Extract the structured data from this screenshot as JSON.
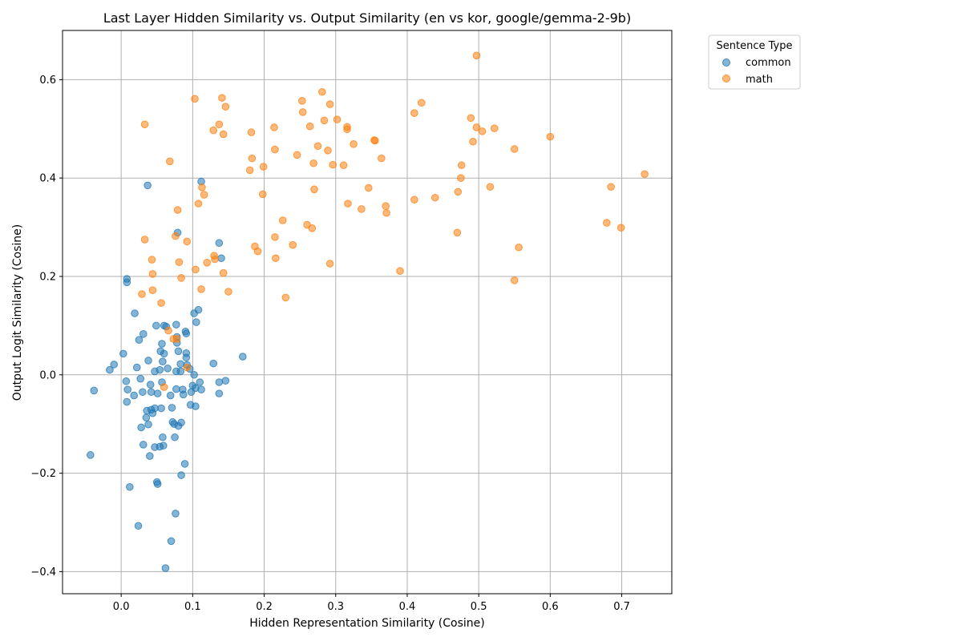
{
  "chart_data": {
    "type": "scatter",
    "title": "Last Layer Hidden Similarity vs. Output Similarity (en vs kor, google/gemma-2-9b)",
    "xlabel": "Hidden Representation Similarity (Cosine)",
    "ylabel": "Output Logit Similarity (Cosine)",
    "xlim": [
      -0.082,
      0.77
    ],
    "ylim": [
      -0.445,
      0.7
    ],
    "xticks": [
      0.0,
      0.1,
      0.2,
      0.3,
      0.4,
      0.5,
      0.6,
      0.7
    ],
    "xtick_labels": [
      "0.0",
      "0.1",
      "0.2",
      "0.3",
      "0.4",
      "0.5",
      "0.6",
      "0.7"
    ],
    "yticks": [
      -0.4,
      -0.2,
      0.0,
      0.2,
      0.4,
      0.6
    ],
    "ytick_labels": [
      "−0.4",
      "−0.2",
      "0.0",
      "0.2",
      "0.4",
      "0.6"
    ],
    "grid": true,
    "legend": {
      "title": "Sentence Type",
      "placement": "outside-top-right"
    },
    "series": [
      {
        "name": "common",
        "color": "#1f77b4",
        "points": [
          [
            -0.043,
            -0.163
          ],
          [
            -0.038,
            -0.032
          ],
          [
            -0.016,
            0.01
          ],
          [
            -0.01,
            0.021
          ],
          [
            0.003,
            0.043
          ],
          [
            0.007,
            -0.013
          ],
          [
            0.008,
            0.195
          ],
          [
            0.008,
            0.188
          ],
          [
            0.008,
            -0.055
          ],
          [
            0.009,
            -0.03
          ],
          [
            0.012,
            -0.228
          ],
          [
            0.018,
            -0.042
          ],
          [
            0.019,
            0.125
          ],
          [
            0.022,
            0.015
          ],
          [
            0.024,
            -0.307
          ],
          [
            0.025,
            0.071
          ],
          [
            0.027,
            -0.008
          ],
          [
            0.028,
            -0.107
          ],
          [
            0.03,
            -0.035
          ],
          [
            0.031,
            0.083
          ],
          [
            0.031,
            -0.142
          ],
          [
            0.035,
            -0.087
          ],
          [
            0.036,
            -0.073
          ],
          [
            0.037,
            0.385
          ],
          [
            0.038,
            0.029
          ],
          [
            0.038,
            -0.101
          ],
          [
            0.04,
            -0.165
          ],
          [
            0.041,
            -0.02
          ],
          [
            0.042,
            -0.035
          ],
          [
            0.042,
            -0.071
          ],
          [
            0.044,
            -0.078
          ],
          [
            0.047,
            -0.068
          ],
          [
            0.047,
            0.007
          ],
          [
            0.047,
            -0.147
          ],
          [
            0.049,
            0.1
          ],
          [
            0.05,
            -0.218
          ],
          [
            0.051,
            -0.222
          ],
          [
            0.051,
            -0.038
          ],
          [
            0.054,
            0.01
          ],
          [
            0.054,
            -0.146
          ],
          [
            0.055,
            0.048
          ],
          [
            0.056,
            -0.068
          ],
          [
            0.057,
            -0.015
          ],
          [
            0.057,
            0.063
          ],
          [
            0.058,
            0.027
          ],
          [
            0.058,
            -0.127
          ],
          [
            0.059,
            -0.144
          ],
          [
            0.06,
            0.1
          ],
          [
            0.06,
            0.043
          ],
          [
            0.062,
            -0.393
          ],
          [
            0.063,
            0.098
          ],
          [
            0.065,
            0.013
          ],
          [
            0.069,
            -0.042
          ],
          [
            0.07,
            -0.338
          ],
          [
            0.071,
            -0.067
          ],
          [
            0.072,
            -0.096
          ],
          [
            0.074,
            -0.1
          ],
          [
            0.075,
            -0.127
          ],
          [
            0.076,
            -0.282
          ],
          [
            0.077,
            0.007
          ],
          [
            0.077,
            0.102
          ],
          [
            0.077,
            -0.029
          ],
          [
            0.078,
            0.077
          ],
          [
            0.078,
            0.065
          ],
          [
            0.079,
            0.289
          ],
          [
            0.08,
            0.048
          ],
          [
            0.08,
            -0.104
          ],
          [
            0.083,
            0.007
          ],
          [
            0.083,
            0.022
          ],
          [
            0.084,
            -0.097
          ],
          [
            0.084,
            -0.204
          ],
          [
            0.086,
            -0.03
          ],
          [
            0.087,
            -0.04
          ],
          [
            0.089,
            -0.181
          ],
          [
            0.09,
            0.088
          ],
          [
            0.091,
            0.044
          ],
          [
            0.091,
            0.084
          ],
          [
            0.091,
            0.035
          ],
          [
            0.092,
            0.02
          ],
          [
            0.096,
            0.012
          ],
          [
            0.097,
            -0.061
          ],
          [
            0.098,
            -0.035
          ],
          [
            0.1,
            -0.022
          ],
          [
            0.102,
            0.0
          ],
          [
            0.102,
            0.125
          ],
          [
            0.104,
            -0.027
          ],
          [
            0.104,
            -0.064
          ],
          [
            0.105,
            0.107
          ],
          [
            0.108,
            0.132
          ],
          [
            0.11,
            -0.015
          ],
          [
            0.112,
            0.393
          ],
          [
            0.112,
            -0.03
          ],
          [
            0.129,
            0.023
          ],
          [
            0.137,
            0.268
          ],
          [
            0.137,
            -0.015
          ],
          [
            0.137,
            -0.038
          ],
          [
            0.14,
            0.237
          ],
          [
            0.146,
            -0.012
          ],
          [
            0.17,
            0.037
          ]
        ]
      },
      {
        "name": "math",
        "color": "#ff7f0e",
        "points": [
          [
            0.029,
            0.164
          ],
          [
            0.033,
            0.275
          ],
          [
            0.033,
            0.509
          ],
          [
            0.043,
            0.234
          ],
          [
            0.044,
            0.172
          ],
          [
            0.044,
            0.205
          ],
          [
            0.056,
            0.146
          ],
          [
            0.06,
            -0.025
          ],
          [
            0.066,
            0.09
          ],
          [
            0.068,
            0.434
          ],
          [
            0.073,
            0.073
          ],
          [
            0.076,
            0.282
          ],
          [
            0.078,
            0.073
          ],
          [
            0.079,
            0.335
          ],
          [
            0.081,
            0.229
          ],
          [
            0.084,
            0.197
          ],
          [
            0.092,
            0.271
          ],
          [
            0.092,
            0.015
          ],
          [
            0.103,
            0.561
          ],
          [
            0.104,
            0.214
          ],
          [
            0.108,
            0.348
          ],
          [
            0.112,
            0.174
          ],
          [
            0.113,
            0.381
          ],
          [
            0.116,
            0.366
          ],
          [
            0.12,
            0.228
          ],
          [
            0.129,
            0.497
          ],
          [
            0.13,
            0.242
          ],
          [
            0.131,
            0.235
          ],
          [
            0.137,
            0.509
          ],
          [
            0.141,
            0.563
          ],
          [
            0.143,
            0.489
          ],
          [
            0.143,
            0.207
          ],
          [
            0.146,
            0.545
          ],
          [
            0.15,
            0.169
          ],
          [
            0.18,
            0.416
          ],
          [
            0.182,
            0.493
          ],
          [
            0.183,
            0.44
          ],
          [
            0.187,
            0.261
          ],
          [
            0.191,
            0.251
          ],
          [
            0.198,
            0.367
          ],
          [
            0.199,
            0.423
          ],
          [
            0.214,
            0.503
          ],
          [
            0.215,
            0.458
          ],
          [
            0.215,
            0.28
          ],
          [
            0.216,
            0.237
          ],
          [
            0.226,
            0.314
          ],
          [
            0.23,
            0.157
          ],
          [
            0.24,
            0.264
          ],
          [
            0.246,
            0.447
          ],
          [
            0.253,
            0.557
          ],
          [
            0.254,
            0.534
          ],
          [
            0.26,
            0.305
          ],
          [
            0.264,
            0.505
          ],
          [
            0.267,
            0.298
          ],
          [
            0.269,
            0.43
          ],
          [
            0.27,
            0.377
          ],
          [
            0.275,
            0.465
          ],
          [
            0.281,
            0.575
          ],
          [
            0.284,
            0.517
          ],
          [
            0.289,
            0.456
          ],
          [
            0.292,
            0.55
          ],
          [
            0.292,
            0.226
          ],
          [
            0.296,
            0.427
          ],
          [
            0.302,
            0.519
          ],
          [
            0.311,
            0.426
          ],
          [
            0.316,
            0.504
          ],
          [
            0.316,
            0.499
          ],
          [
            0.317,
            0.348
          ],
          [
            0.325,
            0.469
          ],
          [
            0.336,
            0.337
          ],
          [
            0.346,
            0.38
          ],
          [
            0.354,
            0.477
          ],
          [
            0.355,
            0.476
          ],
          [
            0.364,
            0.44
          ],
          [
            0.37,
            0.343
          ],
          [
            0.371,
            0.329
          ],
          [
            0.39,
            0.211
          ],
          [
            0.41,
            0.356
          ],
          [
            0.41,
            0.532
          ],
          [
            0.42,
            0.553
          ],
          [
            0.439,
            0.36
          ],
          [
            0.47,
            0.289
          ],
          [
            0.471,
            0.372
          ],
          [
            0.475,
            0.4
          ],
          [
            0.476,
            0.426
          ],
          [
            0.489,
            0.522
          ],
          [
            0.492,
            0.474
          ],
          [
            0.497,
            0.503
          ],
          [
            0.497,
            0.649
          ],
          [
            0.505,
            0.495
          ],
          [
            0.516,
            0.382
          ],
          [
            0.522,
            0.501
          ],
          [
            0.55,
            0.459
          ],
          [
            0.55,
            0.192
          ],
          [
            0.556,
            0.259
          ],
          [
            0.6,
            0.484
          ],
          [
            0.679,
            0.309
          ],
          [
            0.685,
            0.382
          ],
          [
            0.699,
            0.299
          ],
          [
            0.732,
            0.408
          ]
        ]
      }
    ]
  }
}
